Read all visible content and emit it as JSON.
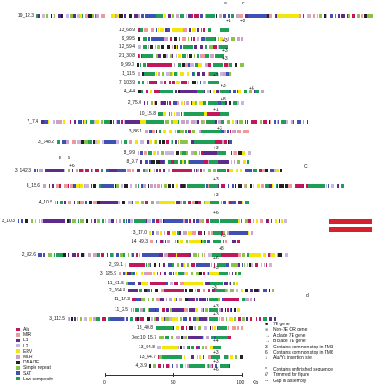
{
  "colors": {
    "Alu": "#c2185b",
    "MIR": "#ef9a9a",
    "L1": "#5e2a8c",
    "L2": "#c8b6e2",
    "ERV": "#f2e60b",
    "MLR": "#c8a2c8",
    "DNA/TE": "#222222",
    "Simple repeat": "#8bc34a",
    "SAT": "#3f51b5",
    "Low complexity": "#1f9e57",
    "7E gene": "#000000",
    "Non-7E OR gene": "#9e9e9e",
    "highlight": "#d62030"
  },
  "rows": [
    {
      "label": "19_12.3",
      "group": "mixed"
    },
    {
      "label": "13_68.9",
      "group": "short"
    },
    {
      "label": "9_99.5",
      "group": "short"
    },
    {
      "label": "12_59.4",
      "group": "short"
    },
    {
      "label": "21_30.8",
      "group": "short"
    },
    {
      "label": "9_99.0",
      "group": "short"
    },
    {
      "label": "1_11.5",
      "group": "short"
    },
    {
      "label": "7_103.9",
      "group": "short"
    },
    {
      "label": "4_4.4",
      "group": "medium"
    },
    {
      "label": "2_75.0",
      "group": "medium"
    },
    {
      "label": "10_15.8",
      "group": "medium"
    },
    {
      "label": "3_86.1",
      "group": "short"
    },
    {
      "label": "7_7.4",
      "group": "long"
    },
    {
      "label": "3_148.2",
      "group": "medium"
    },
    {
      "label": "8_9.9",
      "group": "short"
    },
    {
      "label": "8_9.7",
      "group": "medium"
    },
    {
      "label": "3_142.3",
      "group": "long"
    },
    {
      "label": "8_15.6",
      "group": "long"
    },
    {
      "label": "4_10.5",
      "group": "medium"
    },
    {
      "label": "3_10.3",
      "group": "long"
    },
    {
      "label": "3_17.0",
      "group": "short"
    },
    {
      "label": "14_49.3",
      "group": "short"
    },
    {
      "label": "2_82.6",
      "group": "long"
    },
    {
      "label": "2_99.1",
      "group": "medium"
    },
    {
      "label": "3_125.9",
      "group": "short"
    },
    {
      "label": "11_61.5",
      "group": "medium"
    },
    {
      "label": "2_164.8",
      "group": "medium"
    },
    {
      "label": "11_17.3",
      "group": "medium"
    },
    {
      "label": "11_2.5",
      "group": "medium"
    },
    {
      "label": "3_112.5",
      "group": "medium"
    },
    {
      "label": "13_40.8",
      "group": "short"
    },
    {
      "label": "Dec.10_15.7",
      "group": "short"
    },
    {
      "label": "13_64.8",
      "group": "short"
    },
    {
      "label": "13_64.7",
      "group": "short"
    },
    {
      "label": "4_3.9",
      "group": "short"
    }
  ],
  "markers": {
    "a": "a",
    "b": "b",
    "c": "c",
    "d": "d",
    "C_label": "C",
    "plus1": "+1",
    "plus2": "+2",
    "plus3": "+3",
    "plus4": "+4",
    "plus5": "+5",
    "plus6": "+6",
    "plus8": "+8",
    "plus7": "+7"
  },
  "legend_left": [
    {
      "name": "Alu",
      "color_key": "Alu"
    },
    {
      "name": "MIR",
      "color_key": "MIR"
    },
    {
      "name": "L1",
      "color_key": "L1"
    },
    {
      "name": "L2",
      "color_key": "L2"
    },
    {
      "name": "ERV",
      "color_key": "ERV"
    },
    {
      "name": "MLR",
      "color_key": "MLR"
    },
    {
      "name": "DNA/TE",
      "color_key": "DNA/TE"
    },
    {
      "name": "Simple repeat",
      "color_key": "Simple repeat"
    },
    {
      "name": "SAT",
      "color_key": "SAT"
    },
    {
      "name": "Low complexity",
      "color_key": "Low complexity"
    }
  ],
  "legend_right": [
    {
      "symbol": "■",
      "text": "7E gene"
    },
    {
      "symbol": "■",
      "text": "Non-7E OR gene"
    },
    {
      "symbol": "→",
      "text": "A clade 7E gene"
    },
    {
      "symbol": "→",
      "text": "B clade 7E gene"
    },
    {
      "symbol": "3",
      "text": "Contains common stop in TM3"
    },
    {
      "symbol": "6",
      "text": "Contains common stop in TM6"
    },
    {
      "symbol": "↓",
      "text": "Alu/Ys insertion site"
    },
    {
      "symbol": "*",
      "text": "Contains unfinished sequence"
    },
    {
      "symbol": "//",
      "text": "Trimmed for figure"
    },
    {
      "symbol": "--",
      "text": "Gap in assembly"
    }
  ],
  "axis": {
    "start": "0",
    "mid": "50",
    "end": "100",
    "unit": "Kb"
  }
}
